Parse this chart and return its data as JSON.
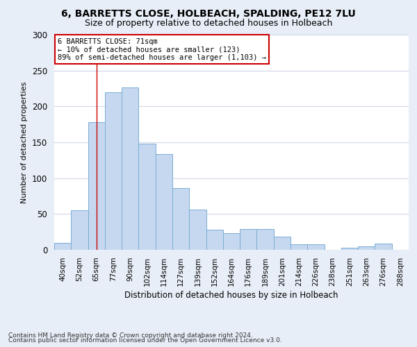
{
  "title_line1": "6, BARRETTS CLOSE, HOLBEACH, SPALDING, PE12 7LU",
  "title_line2": "Size of property relative to detached houses in Holbeach",
  "xlabel": "Distribution of detached houses by size in Holbeach",
  "ylabel": "Number of detached properties",
  "footer_line1": "Contains HM Land Registry data © Crown copyright and database right 2024.",
  "footer_line2": "Contains public sector information licensed under the Open Government Licence v3.0.",
  "bar_labels": [
    "40sqm",
    "52sqm",
    "65sqm",
    "77sqm",
    "90sqm",
    "102sqm",
    "114sqm",
    "127sqm",
    "139sqm",
    "152sqm",
    "164sqm",
    "176sqm",
    "189sqm",
    "201sqm",
    "214sqm",
    "226sqm",
    "238sqm",
    "251sqm",
    "263sqm",
    "276sqm",
    "288sqm"
  ],
  "bar_values": [
    10,
    55,
    178,
    220,
    226,
    148,
    134,
    86,
    56,
    28,
    23,
    29,
    29,
    18,
    8,
    8,
    0,
    3,
    5,
    9,
    0
  ],
  "bar_color": "#c5d8f0",
  "bar_edge_color": "#7aadd4",
  "annotation_line1": "6 BARRETTS CLOSE: 71sqm",
  "annotation_line2": "← 10% of detached houses are smaller (123)",
  "annotation_line3": "89% of semi-detached houses are larger (1,103) →",
  "vline_x": 2.0,
  "ylim": [
    0,
    300
  ],
  "yticks": [
    0,
    50,
    100,
    150,
    200,
    250,
    300
  ],
  "figure_bg": "#e8eef7",
  "axes_bg": "#ffffff",
  "grid_color": "#d0d8e8",
  "annotation_box_color": "#ffffff",
  "annotation_box_edge": "#cc0000",
  "vline_color": "#cc0000",
  "title1_fontsize": 10,
  "title2_fontsize": 9
}
